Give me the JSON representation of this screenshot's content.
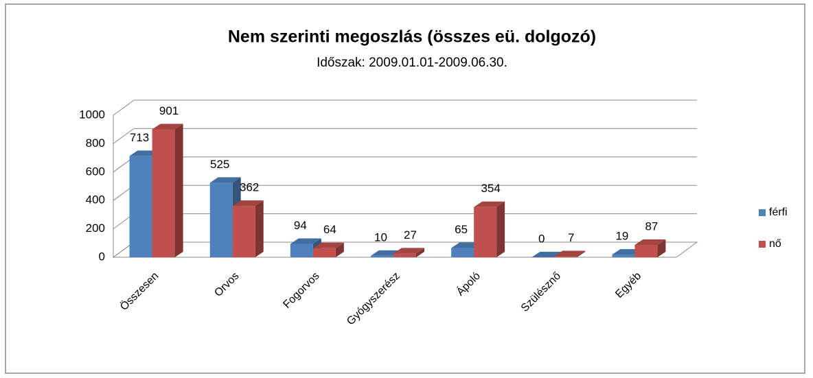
{
  "chart_data": {
    "type": "bar3d",
    "title": "Nem szerinti megoszlás (összes eü. dolgozó)",
    "subtitle": "Időszak: 2009.01.01-2009.06.30.",
    "categories": [
      "Összesen",
      "Orvos",
      "Fogorvos",
      "Gyógyszerész",
      "Ápoló",
      "Szülésznő",
      "Egyéb"
    ],
    "series": [
      {
        "name": "férfi",
        "color": "#4f81bd",
        "values": [
          713,
          525,
          94,
          10,
          65,
          0,
          19
        ]
      },
      {
        "name": "nő",
        "color": "#c0504d",
        "values": [
          901,
          362,
          64,
          27,
          354,
          7,
          87
        ]
      }
    ],
    "ylim": [
      0,
      1000
    ],
    "yticks": [
      0,
      200,
      400,
      600,
      800,
      1000
    ],
    "grid": true,
    "legend": "right"
  }
}
